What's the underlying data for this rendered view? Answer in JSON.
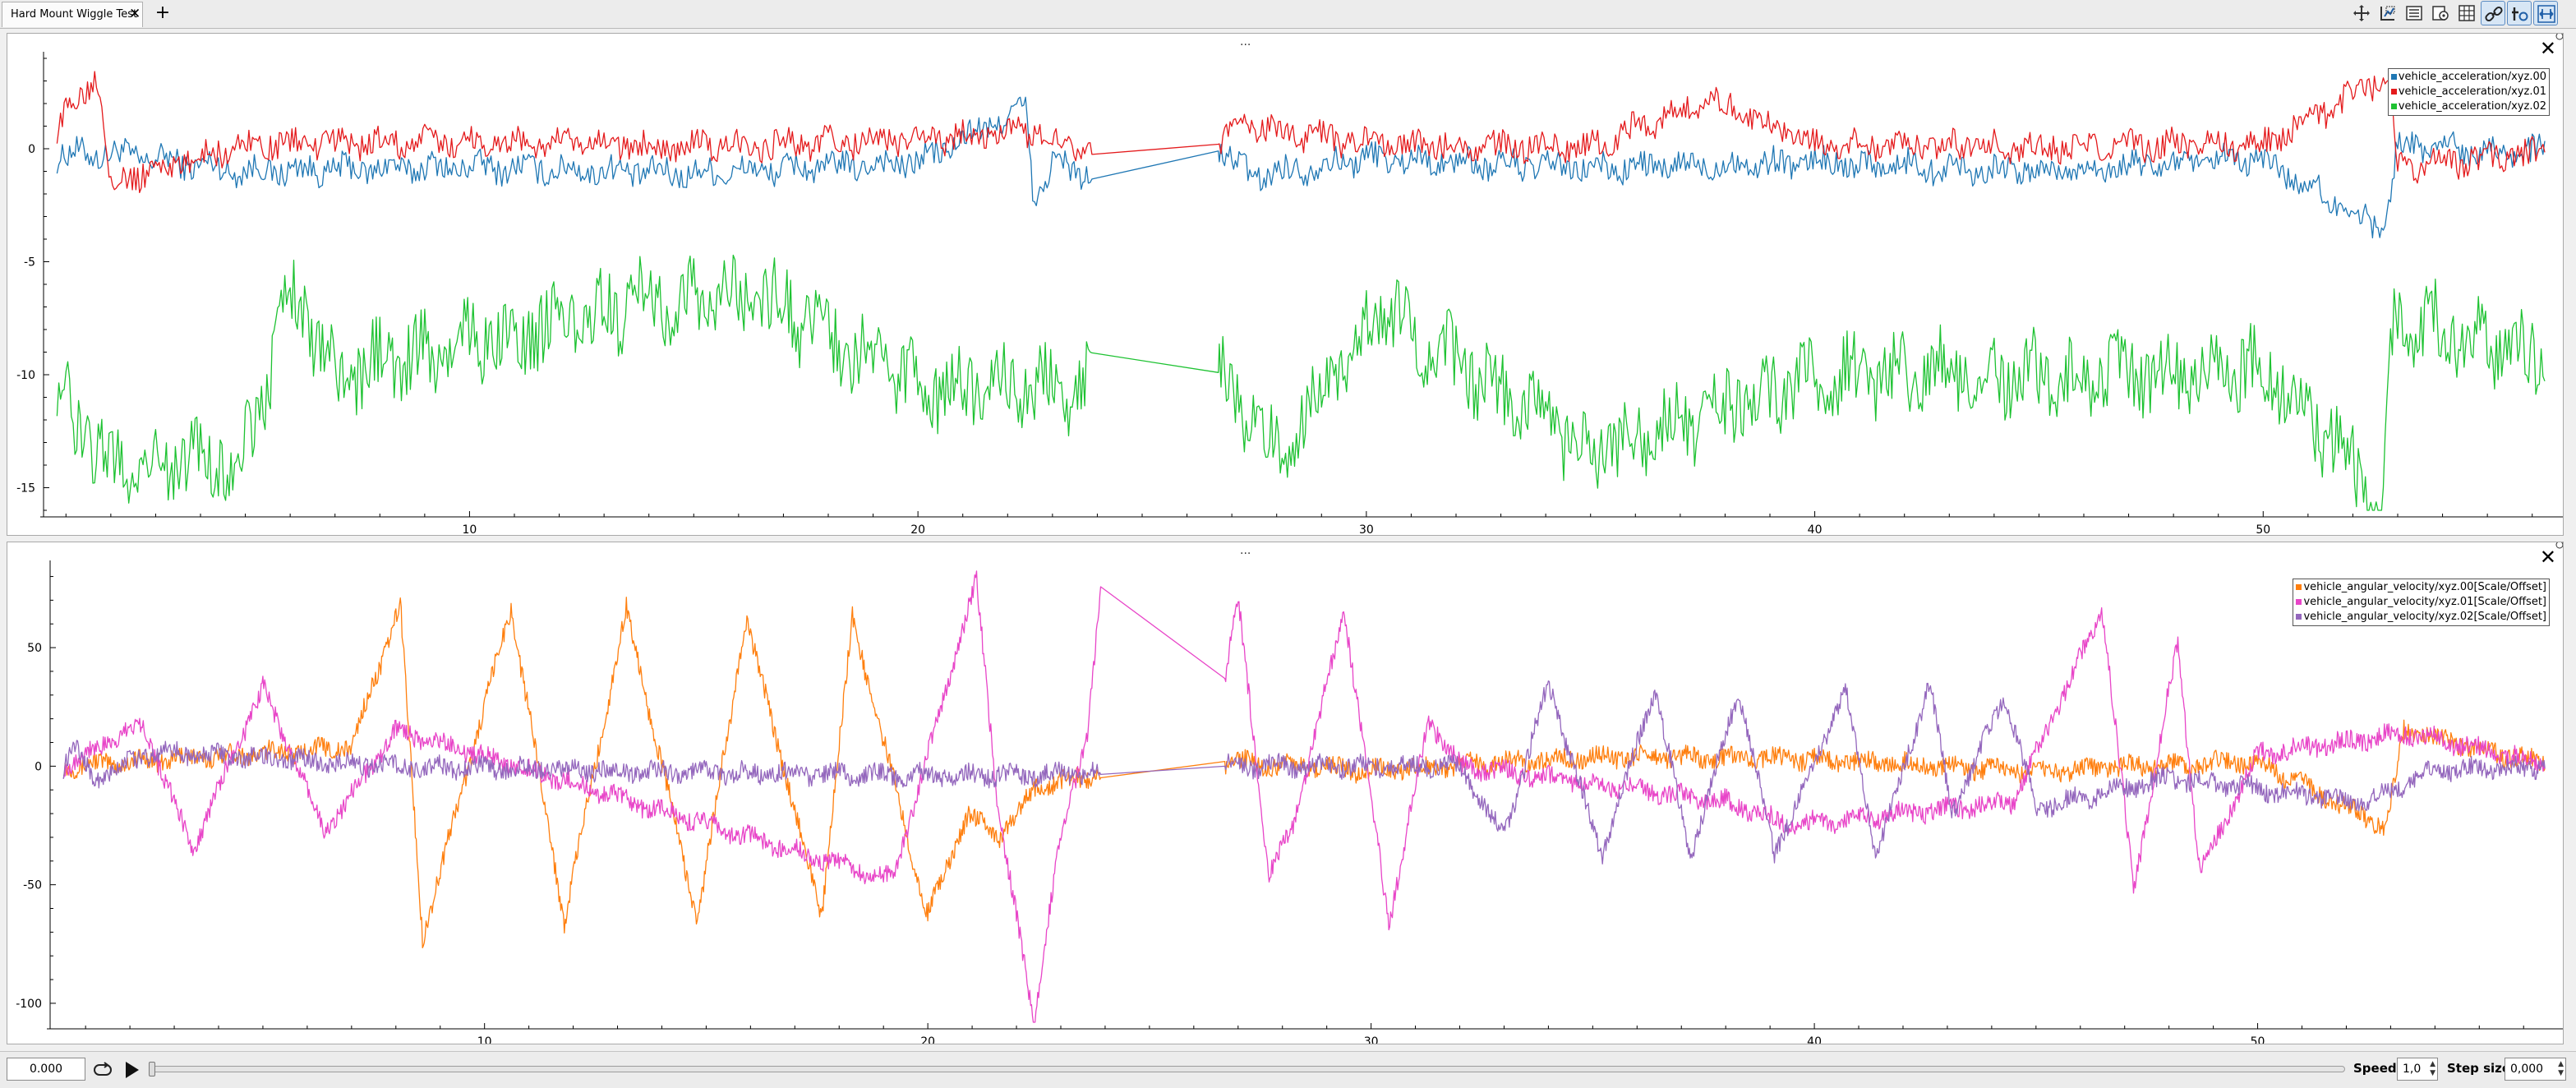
{
  "tabs": [
    {
      "label": "Hard Mount Wiggle Test"
    }
  ],
  "toolbar": {
    "buttons": [
      "move-icon",
      "zoom-icon",
      "legend-icon",
      "settings-icon",
      "grid-icon",
      "link-icon",
      "time-offset-icon",
      "zoom-fit-icon"
    ],
    "active": [
      "link-icon",
      "time-offset-icon",
      "zoom-fit-icon"
    ]
  },
  "panels": [
    {
      "id": "accel",
      "handle": "...",
      "legend": [
        {
          "label": "vehicle_acceleration/xyz.00",
          "color": "#1f77b4"
        },
        {
          "label": "vehicle_acceleration/xyz.01",
          "color": "#e41a1c"
        },
        {
          "label": "vehicle_acceleration/xyz.02",
          "color": "#1ec232"
        }
      ]
    },
    {
      "id": "angvel",
      "handle": "...",
      "legend": [
        {
          "label": "vehicle_angular_velocity/xyz.00[Scale/Offset]",
          "color": "#ff7f0e"
        },
        {
          "label": "vehicle_angular_velocity/xyz.01[Scale/Offset]",
          "color": "#e845c8"
        },
        {
          "label": "vehicle_angular_velocity/xyz.02[Scale/Offset]",
          "color": "#9467bd"
        }
      ]
    }
  ],
  "chart_data": [
    {
      "type": "line",
      "x_ticks": [
        10,
        20,
        30,
        40,
        50
      ],
      "y_ticks": [
        0,
        -5,
        -10,
        -15
      ],
      "xlim": [
        0.5,
        56.5
      ],
      "ylim": [
        -16,
        4
      ],
      "grid": false,
      "legend_position": "top-right",
      "series": [
        {
          "name": "vehicle_acceleration/xyz.00",
          "baseline": -0.5,
          "x_range": [
            0.5,
            56.5
          ],
          "keypoints": [
            [
              0.5,
              -0.3
            ],
            [
              2,
              -0.2
            ],
            [
              5,
              -1.0
            ],
            [
              10,
              -0.8
            ],
            [
              15,
              -1.1
            ],
            [
              20,
              -0.6
            ],
            [
              22.4,
              1.8
            ],
            [
              22.6,
              -2.5
            ],
            [
              23,
              -0.6
            ],
            [
              24,
              -1.3
            ],
            [
              26.7,
              -0.1
            ],
            [
              27.5,
              -1.2
            ],
            [
              30,
              -0.4
            ],
            [
              35,
              -0.9
            ],
            [
              40,
              -0.6
            ],
            [
              45,
              -1.0
            ],
            [
              50,
              -0.5
            ],
            [
              52.7,
              -3.6
            ],
            [
              53,
              0.2
            ],
            [
              56.5,
              -0.2
            ]
          ]
        },
        {
          "name": "vehicle_acceleration/xyz.01",
          "baseline": 0.1,
          "x_range": [
            0.5,
            56.5
          ],
          "keypoints": [
            [
              0.5,
              0.0
            ],
            [
              1.7,
              3.5
            ],
            [
              2,
              -1.5
            ],
            [
              5,
              0.2
            ],
            [
              10,
              0.3
            ],
            [
              15,
              0.1
            ],
            [
              20,
              0.4
            ],
            [
              22.4,
              0.8
            ],
            [
              24,
              0.0
            ],
            [
              26.7,
              0.2
            ],
            [
              27.2,
              1.0
            ],
            [
              30,
              0.2
            ],
            [
              35,
              0.1
            ],
            [
              37.6,
              2.2
            ],
            [
              40,
              0.2
            ],
            [
              45,
              0.1
            ],
            [
              50,
              0.2
            ],
            [
              52.8,
              3.2
            ],
            [
              53,
              -0.8
            ],
            [
              56.5,
              -0.2
            ]
          ]
        },
        {
          "name": "vehicle_acceleration/xyz.02",
          "baseline": -10,
          "x_range": [
            0.5,
            56.5
          ],
          "keypoints": [
            [
              0.5,
              -9.8
            ],
            [
              1.9,
              -14.0
            ],
            [
              4.9,
              -13.8
            ],
            [
              6.1,
              -6.2
            ],
            [
              7,
              -10
            ],
            [
              14,
              -6.8
            ],
            [
              16.5,
              -6.5
            ],
            [
              20,
              -10.5
            ],
            [
              23.7,
              -10.6
            ],
            [
              26.7,
              -9.9
            ],
            [
              28,
              -13.2
            ],
            [
              30.3,
              -7.2
            ],
            [
              35,
              -13.5
            ],
            [
              40,
              -10
            ],
            [
              45,
              -10
            ],
            [
              50,
              -9.8
            ],
            [
              52.7,
              -15.5
            ],
            [
              52.9,
              -7.3
            ],
            [
              56.5,
              -9.8
            ]
          ]
        }
      ]
    },
    {
      "type": "line",
      "x_ticks": [
        10,
        20,
        30,
        40,
        50
      ],
      "y_ticks": [
        50,
        0,
        -50,
        -100
      ],
      "xlim": [
        0.2,
        56.7
      ],
      "ylim": [
        -108,
        84
      ],
      "grid": false,
      "legend_position": "top-right",
      "series": [
        {
          "name": "vehicle_angular_velocity/xyz.00[Scale/Offset]",
          "keypoints": [
            [
              0.5,
              0
            ],
            [
              7,
              8
            ],
            [
              8.1,
              68
            ],
            [
              8.6,
              -72
            ],
            [
              10.6,
              67
            ],
            [
              11.8,
              -65
            ],
            [
              13.2,
              66
            ],
            [
              14.8,
              -65
            ],
            [
              15.9,
              62
            ],
            [
              17.6,
              -63
            ],
            [
              18.3,
              62
            ],
            [
              20,
              -63
            ],
            [
              20.9,
              -20
            ],
            [
              21.6,
              -30
            ],
            [
              22.5,
              -8
            ],
            [
              23.8,
              -4
            ],
            [
              26.7,
              2
            ],
            [
              30,
              -2
            ],
            [
              35,
              4
            ],
            [
              40,
              3
            ],
            [
              45,
              -2
            ],
            [
              50,
              2
            ],
            [
              52.9,
              -26
            ],
            [
              53.3,
              15
            ],
            [
              56.7,
              0
            ]
          ]
        },
        {
          "name": "vehicle_angular_velocity/xyz.01[Scale/Offset]",
          "keypoints": [
            [
              0.5,
              0
            ],
            [
              2.3,
              18
            ],
            [
              3.4,
              -35
            ],
            [
              5,
              33
            ],
            [
              6.4,
              -28
            ],
            [
              8,
              15
            ],
            [
              19.2,
              -48
            ],
            [
              21.1,
              78
            ],
            [
              21.6,
              -20
            ],
            [
              22.4,
              -108
            ],
            [
              22.9,
              -40
            ],
            [
              23.6,
              15
            ],
            [
              23.9,
              72
            ],
            [
              26.7,
              37
            ],
            [
              27,
              70
            ],
            [
              27.7,
              -45
            ],
            [
              28.2,
              -28
            ],
            [
              29.4,
              65
            ],
            [
              30.4,
              -66
            ],
            [
              31.3,
              20
            ],
            [
              32,
              0
            ],
            [
              38,
              -15
            ],
            [
              39.5,
              -25
            ],
            [
              44.5,
              -15
            ],
            [
              46.5,
              66
            ],
            [
              47.2,
              -52
            ],
            [
              48.2,
              52
            ],
            [
              48.7,
              -45
            ],
            [
              50,
              5
            ],
            [
              53.4,
              14
            ],
            [
              56.7,
              0
            ]
          ]
        },
        {
          "name": "vehicle_angular_velocity/xyz.02[Scale/Offset]",
          "keypoints": [
            [
              0.5,
              0
            ],
            [
              0.7,
              10
            ],
            [
              1.2,
              -6
            ],
            [
              2.5,
              6
            ],
            [
              8,
              0
            ],
            [
              16,
              -3
            ],
            [
              22,
              -4
            ],
            [
              23.8,
              -3
            ],
            [
              26.7,
              0
            ],
            [
              32,
              0
            ],
            [
              33,
              -30
            ],
            [
              34,
              35
            ],
            [
              35.2,
              -38
            ],
            [
              36.4,
              33
            ],
            [
              37.2,
              -38
            ],
            [
              38.3,
              32
            ],
            [
              39.1,
              -37
            ],
            [
              40.7,
              32
            ],
            [
              41.4,
              -38
            ],
            [
              42.6,
              35
            ],
            [
              43.1,
              -20
            ],
            [
              44.3,
              30
            ],
            [
              45,
              -18
            ],
            [
              48,
              -5
            ],
            [
              52.4,
              -15
            ],
            [
              54,
              -2
            ],
            [
              56.7,
              0
            ]
          ]
        }
      ]
    }
  ],
  "bottombar": {
    "time_value": "0.000",
    "speed_label": "Speed:",
    "speed_value": "1,0",
    "step_label": "Step size:",
    "step_value": "0,000",
    "timeline_position": 0.0
  }
}
